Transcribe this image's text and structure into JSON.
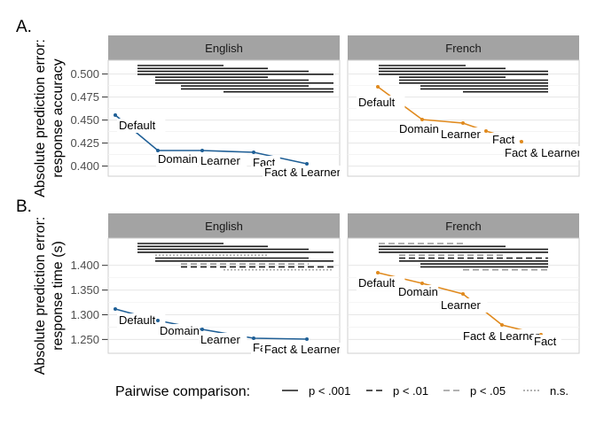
{
  "chart_data": {
    "type": "line",
    "facets": [
      "English",
      "French"
    ],
    "series_colors": {
      "English": "#1f5f96",
      "French": "#e08a1e"
    },
    "panels": [
      {
        "id": "A",
        "letter": "A.",
        "ylabel_lines": [
          "Absolute prediction error:",
          "response accuracy"
        ],
        "ylim": [
          0.389,
          0.515
        ],
        "yticks": [
          0.4,
          0.425,
          0.45,
          0.475,
          0.5
        ],
        "ytick_labels": [
          "0.400",
          "0.425",
          "0.450",
          "0.475",
          "0.500"
        ],
        "facets": [
          {
            "name": "English",
            "points": [
              {
                "label": "Default",
                "x": 0.446
              },
              {
                "label": "Domain",
                "x": 0.415
              },
              {
                "label": "Learner",
                "x": 0.413
              },
              {
                "label": "Fact",
                "x": 0.411
              },
              {
                "label": "Fact & Learner",
                "x": 0.401
              }
            ],
            "comparisons": [
              {
                "from": 1,
                "to": 2,
                "sig": "p < .001"
              },
              {
                "from": 1,
                "to": 3,
                "sig": "p < .001"
              },
              {
                "from": 1,
                "to": 4,
                "sig": "p < .001"
              },
              {
                "from": 1,
                "to": 5,
                "sig": "p < .001"
              },
              {
                "from": 2,
                "to": 3,
                "sig": "p < .001"
              },
              {
                "from": 2,
                "to": 4,
                "sig": "p < .001"
              },
              {
                "from": 2,
                "to": 5,
                "sig": "p < .001"
              },
              {
                "from": 3,
                "to": 4,
                "sig": "p < .001"
              },
              {
                "from": 3,
                "to": 5,
                "sig": "p < .001"
              },
              {
                "from": 4,
                "to": 5,
                "sig": "p < .001"
              }
            ]
          },
          {
            "name": "French",
            "points": [
              {
                "label": "Default",
                "x": 0.469
              },
              {
                "label": "Domain",
                "x": 0.442
              },
              {
                "label": "Learner",
                "x": 0.439
              },
              {
                "label": "Fact",
                "x": 0.432
              },
              {
                "label": "Fact & Learner",
                "x": 0.42
              }
            ],
            "comparisons": [
              {
                "from": 1,
                "to": 2,
                "sig": "p < .001"
              },
              {
                "from": 1,
                "to": 3,
                "sig": "p < .001"
              },
              {
                "from": 1,
                "to": 4,
                "sig": "p < .001"
              },
              {
                "from": 1,
                "to": 5,
                "sig": "p < .001"
              },
              {
                "from": 2,
                "to": 3,
                "sig": "p < .001"
              },
              {
                "from": 2,
                "to": 4,
                "sig": "p < .001"
              },
              {
                "from": 2,
                "to": 5,
                "sig": "p < .001"
              },
              {
                "from": 3,
                "to": 4,
                "sig": "p < .001"
              },
              {
                "from": 3,
                "to": 5,
                "sig": "p < .001"
              },
              {
                "from": 4,
                "to": 5,
                "sig": "p < .001"
              }
            ]
          }
        ]
      },
      {
        "id": "B",
        "letter": "B.",
        "ylabel_lines": [
          "Absolute prediction error:",
          "response time (s)"
        ],
        "ylim": [
          1.222,
          1.455
        ],
        "yticks": [
          1.25,
          1.3,
          1.35,
          1.4
        ],
        "ytick_labels": [
          "1.250",
          "1.300",
          "1.350",
          "1.400"
        ],
        "facets": [
          {
            "name": "English",
            "points": [
              {
                "label": "Default",
                "x": 1.304
              },
              {
                "label": "Domain",
                "x": 1.282
              },
              {
                "label": "Learner",
                "x": 1.265
              },
              {
                "label": "Fact",
                "x": 1.247
              },
              {
                "label": "Fact & Learner",
                "x": 1.245
              }
            ],
            "comparisons": [
              {
                "from": 1,
                "to": 2,
                "sig": "p < .001"
              },
              {
                "from": 1,
                "to": 3,
                "sig": "p < .001"
              },
              {
                "from": 1,
                "to": 4,
                "sig": "p < .001"
              },
              {
                "from": 1,
                "to": 5,
                "sig": "p < .001"
              },
              {
                "from": 2,
                "to": 3,
                "sig": "n.s."
              },
              {
                "from": 2,
                "to": 4,
                "sig": "p < .001"
              },
              {
                "from": 2,
                "to": 5,
                "sig": "p < .001"
              },
              {
                "from": 3,
                "to": 4,
                "sig": "p < .05"
              },
              {
                "from": 3,
                "to": 5,
                "sig": "p < .01"
              },
              {
                "from": 4,
                "to": 5,
                "sig": "n.s."
              }
            ]
          },
          {
            "name": "French",
            "points": [
              {
                "label": "Default",
                "x": 1.376
              },
              {
                "label": "Domain",
                "x": 1.356
              },
              {
                "label": "Learner",
                "x": 1.334
              },
              {
                "label": "Fact & Learner",
                "x": 1.274
              },
              {
                "label": "Fact",
                "x": 1.246
              }
            ],
            "comparisons": [
              {
                "from": 1,
                "to": 2,
                "sig": "p < .05"
              },
              {
                "from": 1,
                "to": 3,
                "sig": "p < .001"
              },
              {
                "from": 1,
                "to": 4,
                "sig": "p < .001"
              },
              {
                "from": 1,
                "to": 5,
                "sig": "p < .001"
              },
              {
                "from": 2,
                "to": 3,
                "sig": "p < .05"
              },
              {
                "from": 2,
                "to": 4,
                "sig": "p < .01"
              },
              {
                "from": 2,
                "to": 5,
                "sig": "p < .001"
              },
              {
                "from": 3,
                "to": 4,
                "sig": "p < .001"
              },
              {
                "from": 3,
                "to": 5,
                "sig": "p < .001"
              },
              {
                "from": 4,
                "to": 5,
                "sig": "p < .05"
              }
            ]
          }
        ]
      }
    ],
    "legend": {
      "title": "Pairwise comparison:",
      "position": "bottom",
      "items": [
        {
          "label": "p < .001",
          "style": "solid",
          "color": "#1a1a1a"
        },
        {
          "label": "p < .01",
          "style": "dashed",
          "color": "#1a1a1a"
        },
        {
          "label": "p < .05",
          "style": "dashed",
          "color": "#999999"
        },
        {
          "label": "n.s.",
          "style": "dotted",
          "color": "#999999"
        }
      ]
    },
    "grid": true
  }
}
